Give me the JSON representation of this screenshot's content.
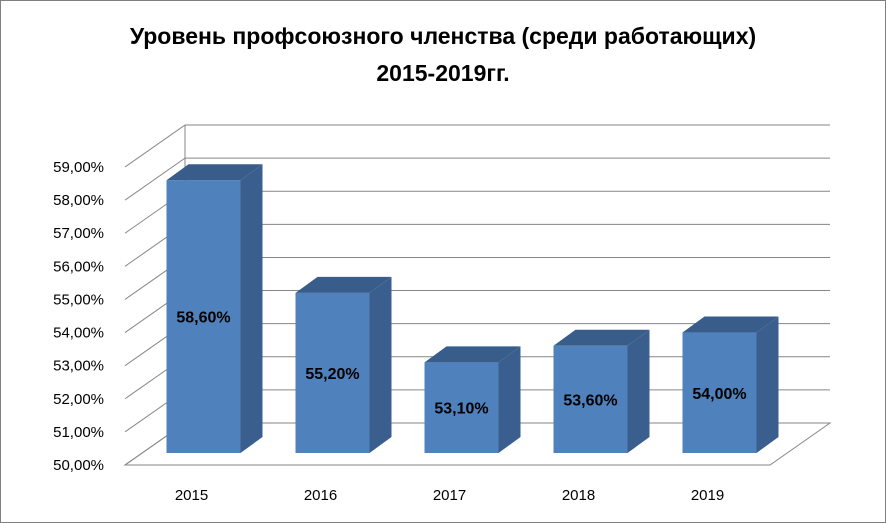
{
  "chart_data": {
    "type": "bar",
    "title_line1": "Уровень профсоюзного членства (среди работающих)",
    "title_line2": "2015-2019гг.",
    "categories": [
      "2015",
      "2016",
      "2017",
      "2018",
      "2019"
    ],
    "values": [
      58.6,
      55.2,
      53.1,
      53.6,
      54.0
    ],
    "data_labels": [
      "58,60%",
      "55,20%",
      "53,10%",
      "53,60%",
      "54,00%"
    ],
    "y_ticks": [
      "50,00%",
      "51,00%",
      "52,00%",
      "53,00%",
      "54,00%",
      "55,00%",
      "56,00%",
      "57,00%",
      "58,00%",
      "59,00%"
    ],
    "ylim": [
      50,
      59
    ],
    "grid": true,
    "legend": "none",
    "colors": {
      "bar_front": "#4f81bd",
      "bar_side": "#3a5f8e",
      "bar_top": "#385d8a",
      "grid": "#868686"
    }
  }
}
